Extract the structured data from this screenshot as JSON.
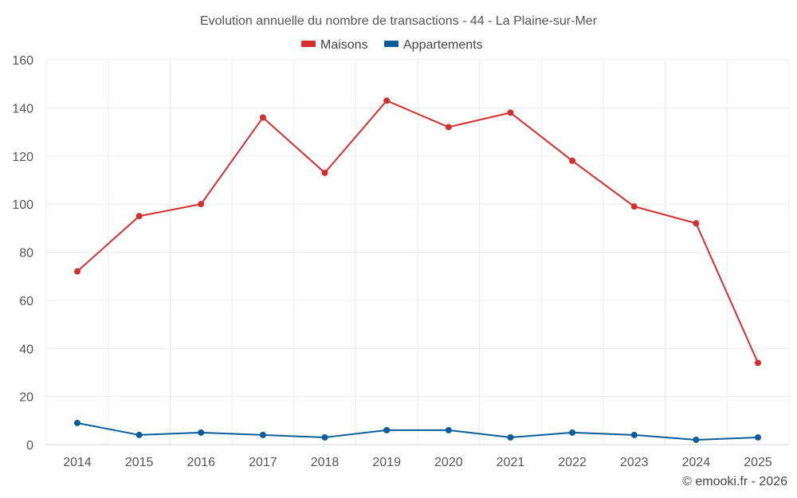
{
  "chart_data": {
    "type": "line",
    "title": "Evolution annuelle du nombre de transactions - 44 - La Plaine-sur-Mer",
    "categories": [
      "2014",
      "2015",
      "2016",
      "2017",
      "2018",
      "2019",
      "2020",
      "2021",
      "2022",
      "2023",
      "2024",
      "2025"
    ],
    "series": [
      {
        "name": "Maisons",
        "color": "#d32f2f",
        "values": [
          72,
          95,
          100,
          136,
          113,
          143,
          132,
          138,
          118,
          99,
          92,
          34
        ]
      },
      {
        "name": "Appartements",
        "color": "#0b5d99",
        "values": [
          9,
          4,
          5,
          4,
          3,
          6,
          6,
          3,
          5,
          4,
          2,
          3
        ]
      }
    ],
    "ylim": [
      0,
      160
    ],
    "yticks": [
      0,
      20,
      40,
      60,
      80,
      100,
      120,
      140,
      160
    ],
    "xlabel": "",
    "ylabel": "",
    "grid": true,
    "legend_position": "top-center"
  },
  "credit": "© emooki.fr - 2026"
}
